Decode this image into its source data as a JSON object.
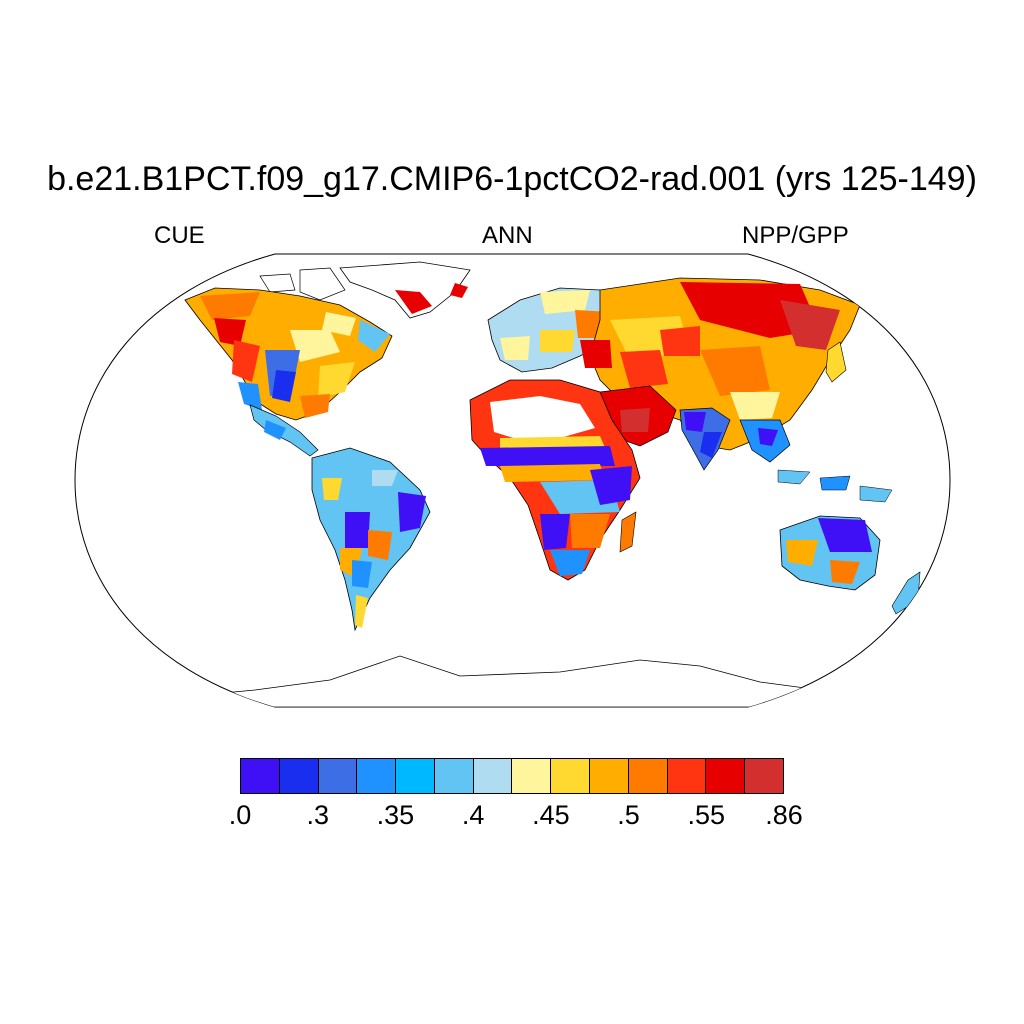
{
  "title": "b.e21.B1PCT.f09_g17.CMIP6-1pctCO2-rad.001 (yrs 125-149)",
  "subtitle_left": "CUE",
  "subtitle_center": "ANN",
  "subtitle_right": "NPP/GPP",
  "colorbar": {
    "colors": [
      "#3f10f5",
      "#1a2ef0",
      "#3e6ee6",
      "#2092ff",
      "#00b8ff",
      "#61c4f2",
      "#b0dcf2",
      "#fff59d",
      "#ffd92f",
      "#ffae00",
      "#ff7b00",
      "#ff3511",
      "#e60000",
      "#d32f2f"
    ],
    "labels": [
      ".0",
      ".3",
      ".35",
      ".4",
      ".45",
      ".5",
      ".55",
      ".86"
    ]
  }
}
